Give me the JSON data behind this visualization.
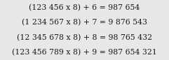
{
  "lines": [
    "(123 456 x 8) + 6 = 987 654",
    "(1 234 567 x 8) + 7 = 9 876 543",
    "(12 345 678 x 8) + 8 = 98 765 432",
    "(123 456 789 x 8) + 9 = 987 654 321"
  ],
  "background_color": "#e8e8e8",
  "text_color": "#1a1a1a",
  "font_size": 7.8,
  "figwidth": 2.41,
  "figheight": 0.86,
  "dpi": 100
}
